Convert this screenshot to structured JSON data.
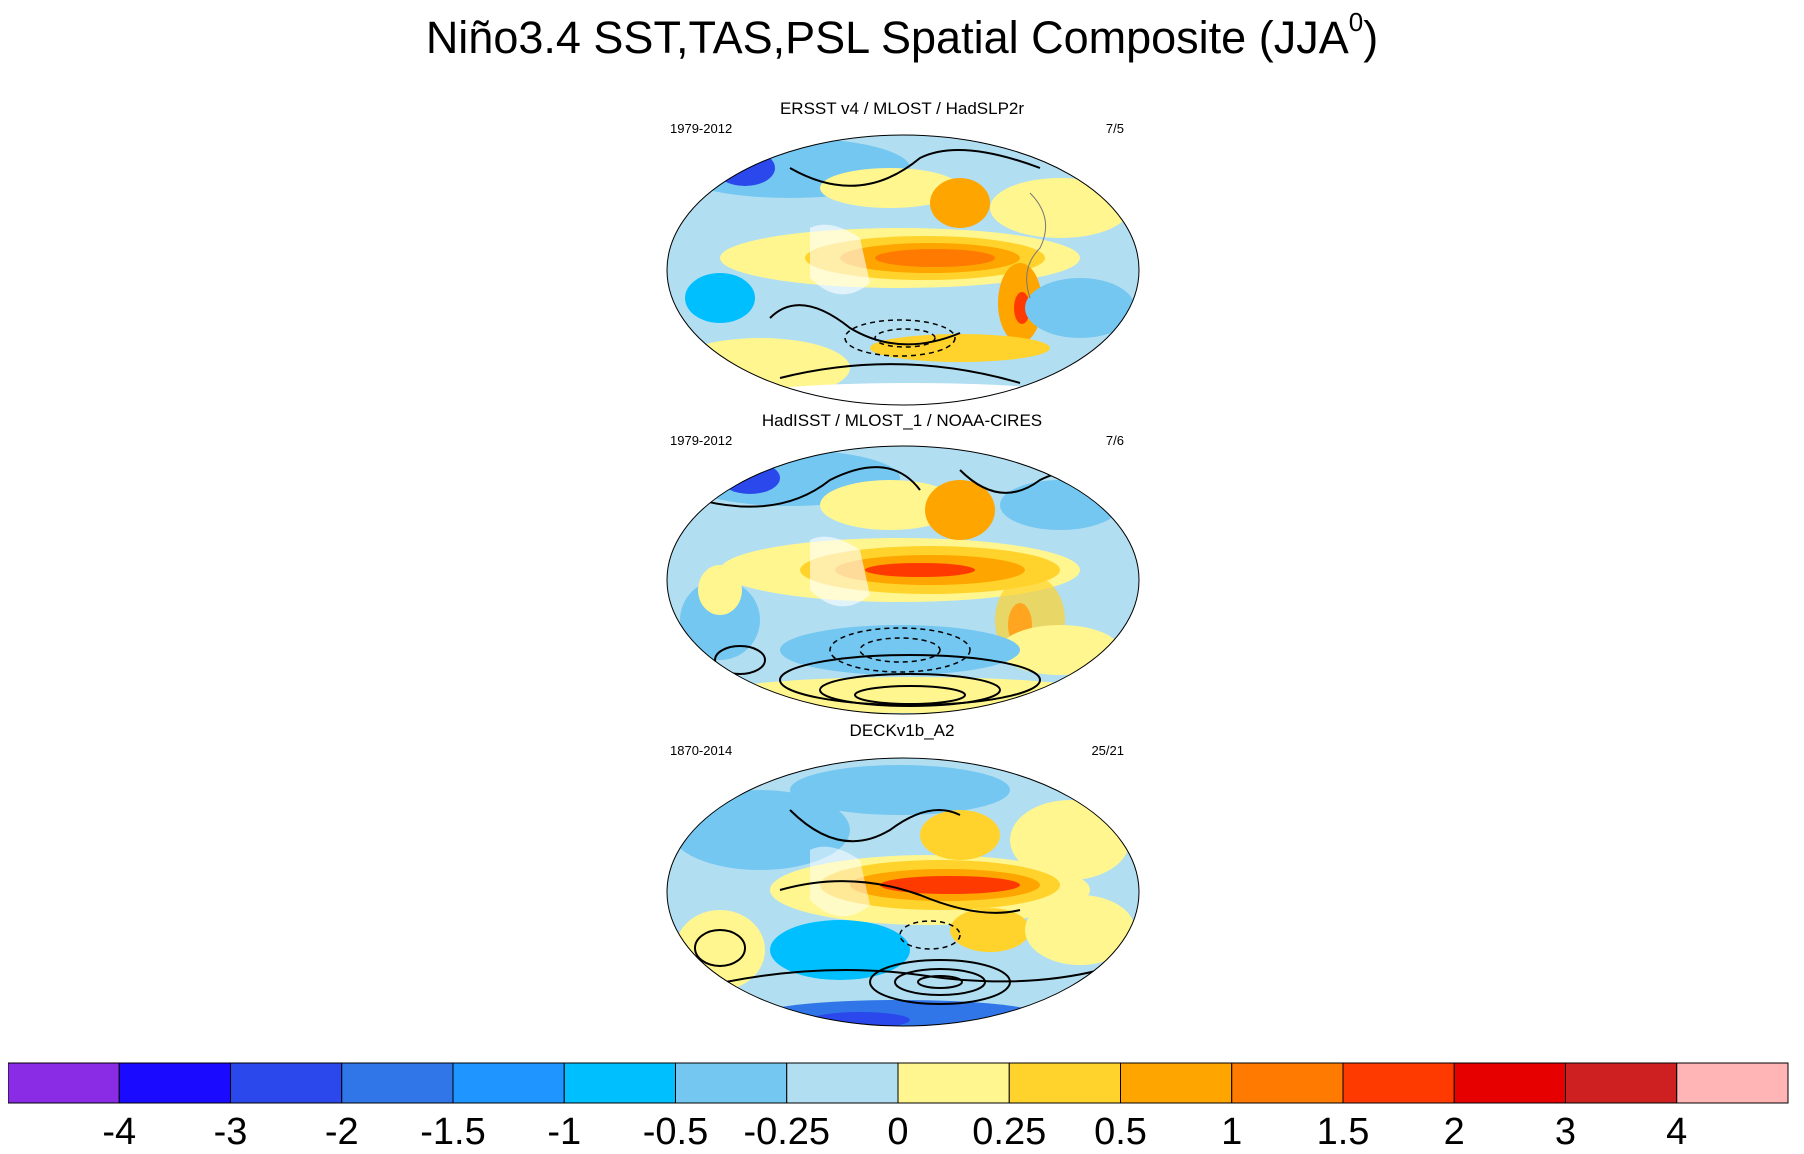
{
  "figure": {
    "title_main": "Niño3.4 SST,TAS,PSL Spatial Composite (JJA",
    "title_sup": "0",
    "title_end": ")"
  },
  "panels": [
    {
      "title": "ERSST v4 / MLOST / HadSLP2r",
      "period": "1979-2012",
      "count": "7/5"
    },
    {
      "title": "HadISST / MLOST_1 / NOAA-CIRES",
      "period": "1979-2012",
      "count": "7/6"
    },
    {
      "title": "DECKv1b_A2",
      "period": "1870-2014",
      "count": "25/21"
    }
  ],
  "colorbar": {
    "colors": [
      "#8a2be6",
      "#1a0aff",
      "#2a48ec",
      "#3176e8",
      "#1f96ff",
      "#00bfff",
      "#74c7f0",
      "#b2def2",
      "#fff68f",
      "#ffd32c",
      "#ffa500",
      "#ff7a00",
      "#ff3a00",
      "#e60000",
      "#ce2020",
      "#ffb5b5"
    ],
    "labels": [
      "-4",
      "-3",
      "-2",
      "-1.5",
      "-1",
      "-0.5",
      "-0.25",
      "0",
      "0.25",
      "0.5",
      "1",
      "1.5",
      "2",
      "3",
      "4"
    ]
  }
}
